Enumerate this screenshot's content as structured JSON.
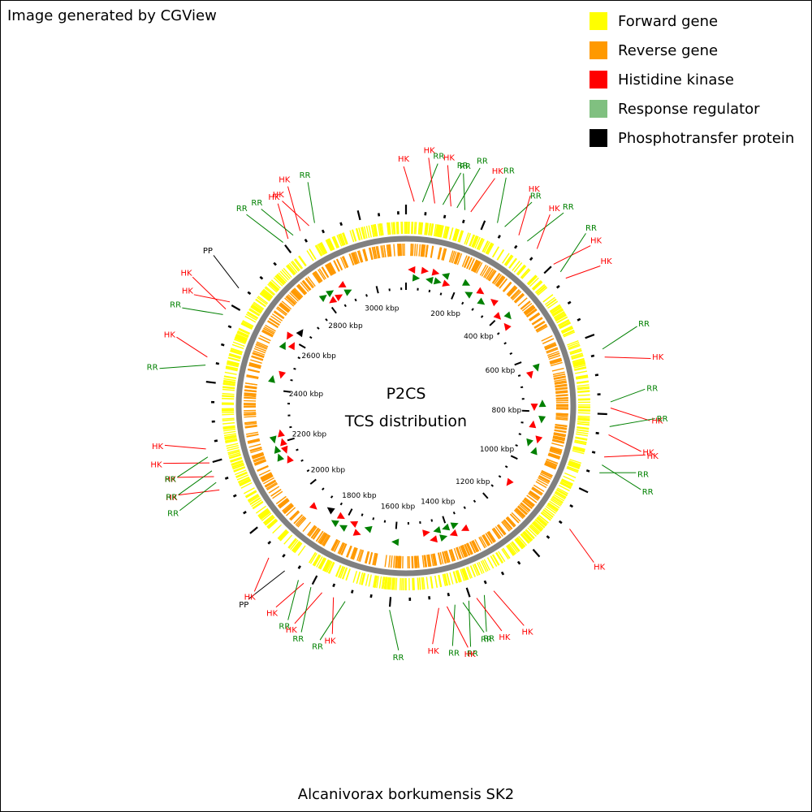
{
  "credit": "Image generated by CGView",
  "organism": "Alcanivorax borkumensis SK2",
  "center": {
    "line1": "P2CS",
    "line2": "TCS distribution"
  },
  "legend": [
    {
      "label": "Forward gene",
      "color": "#ffff00"
    },
    {
      "label": "Reverse gene",
      "color": "#ff9900"
    },
    {
      "label": "Histidine kinase",
      "color": "#ff0000"
    },
    {
      "label": "Response regulator",
      "color": "#80c080"
    },
    {
      "label": "Phosphotransfer protein",
      "color": "#000000"
    }
  ],
  "colors": {
    "forward": "#ffff00",
    "reverse": "#ff9900",
    "HK": "#ff0000",
    "RR": "#008000",
    "PP": "#000000",
    "backbone": "#808080"
  },
  "genome_kbp": 3120,
  "tick_labels": [
    "200 kbp",
    "400 kbp",
    "600 kbp",
    "800 kbp",
    "1000 kbp",
    "1200 kbp",
    "1400 kbp",
    "1600 kbp",
    "1800 kbp",
    "2000 kbp",
    "2200 kbp",
    "2400 kbp",
    "2600 kbp",
    "2800 kbp",
    "3000 kbp"
  ],
  "tick_values_kbp": [
    200,
    400,
    600,
    800,
    1000,
    1200,
    1400,
    1600,
    1800,
    2000,
    2200,
    2400,
    2600,
    2800,
    3000
  ],
  "features": [
    {
      "type": "HK",
      "kbp": 20
    },
    {
      "type": "RR",
      "kbp": 40
    },
    {
      "type": "HK",
      "kbp": 70
    },
    {
      "type": "RR",
      "kbp": 90
    },
    {
      "type": "HK",
      "kbp": 110
    },
    {
      "type": "RR",
      "kbp": 125
    },
    {
      "type": "RR",
      "kbp": 145
    },
    {
      "type": "HK",
      "kbp": 160
    },
    {
      "type": "RR",
      "kbp": 230
    },
    {
      "type": "RR",
      "kbp": 250
    },
    {
      "type": "HK",
      "kbp": 290
    },
    {
      "type": "RR",
      "kbp": 315
    },
    {
      "type": "HK",
      "kbp": 345
    },
    {
      "type": "HK",
      "kbp": 400
    },
    {
      "type": "RR",
      "kbp": 425
    },
    {
      "type": "HK",
      "kbp": 445
    },
    {
      "type": "RR",
      "kbp": 640
    },
    {
      "type": "HK",
      "kbp": 660
    },
    {
      "type": "RR",
      "kbp": 770
    },
    {
      "type": "HK",
      "kbp": 785
    },
    {
      "type": "RR",
      "kbp": 830
    },
    {
      "type": "HK",
      "kbp": 850
    },
    {
      "type": "HK",
      "kbp": 905
    },
    {
      "type": "RR",
      "kbp": 925
    },
    {
      "type": "RR",
      "kbp": 945
    },
    {
      "type": "HK",
      "kbp": 1100
    },
    {
      "type": "HK",
      "kbp": 1340
    },
    {
      "type": "RR",
      "kbp": 1365
    },
    {
      "type": "HK",
      "kbp": 1385
    },
    {
      "type": "RR",
      "kbp": 1405
    },
    {
      "type": "RR",
      "kbp": 1420
    },
    {
      "type": "RR",
      "kbp": 1440
    },
    {
      "type": "HK",
      "kbp": 1460
    },
    {
      "type": "HK",
      "kbp": 1480
    },
    {
      "type": "RR",
      "kbp": 1600
    },
    {
      "type": "RR",
      "kbp": 1710
    },
    {
      "type": "HK",
      "kbp": 1740
    },
    {
      "type": "HK",
      "kbp": 1770
    },
    {
      "type": "RR",
      "kbp": 1800
    },
    {
      "type": "HK",
      "kbp": 1820
    },
    {
      "type": "RR",
      "kbp": 1835
    },
    {
      "type": "PP",
      "kbp": 1875
    },
    {
      "type": "HK",
      "kbp": 1925
    },
    {
      "type": "HK",
      "kbp": 2130
    },
    {
      "type": "RR",
      "kbp": 2150
    },
    {
      "type": "HK",
      "kbp": 2165
    },
    {
      "type": "RR",
      "kbp": 2180
    },
    {
      "type": "HK",
      "kbp": 2200
    },
    {
      "type": "RR",
      "kbp": 2215
    },
    {
      "type": "HK",
      "kbp": 2235
    },
    {
      "type": "RR",
      "kbp": 2440
    },
    {
      "type": "HK",
      "kbp": 2460
    },
    {
      "type": "RR",
      "kbp": 2570
    },
    {
      "type": "HK",
      "kbp": 2585
    },
    {
      "type": "HK",
      "kbp": 2605
    },
    {
      "type": "PP",
      "kbp": 2645
    },
    {
      "type": "RR",
      "kbp": 2800
    },
    {
      "type": "HK",
      "kbp": 2815
    },
    {
      "type": "RR",
      "kbp": 2830
    },
    {
      "type": "HK",
      "kbp": 2850
    },
    {
      "type": "HK",
      "kbp": 2875
    },
    {
      "type": "RR",
      "kbp": 2890
    }
  ]
}
